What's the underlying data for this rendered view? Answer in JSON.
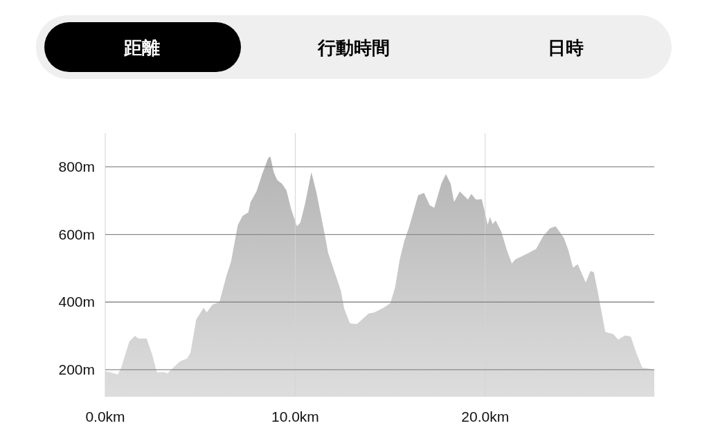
{
  "chart_data": {
    "type": "area",
    "annotations": [
      "距離",
      "行動時間",
      "日時"
    ],
    "x": [
      0,
      0.47,
      0.66,
      0.84,
      1.27,
      1.57,
      1.75,
      2.18,
      2.48,
      2.72,
      3.09,
      3.27,
      3.58,
      3.94,
      4.31,
      4.49,
      4.79,
      5.18,
      5.34,
      5.65,
      6.01,
      6.38,
      6.62,
      6.98,
      7.23,
      7.53,
      7.65,
      7.96,
      8.26,
      8.57,
      8.69,
      8.87,
      9.05,
      9.3,
      9.54,
      9.78,
      10.09,
      10.27,
      10.51,
      10.85,
      11.12,
      11.55,
      11.73,
      12.4,
      12.58,
      12.88,
      13.25,
      13.86,
      14.16,
      14.65,
      15.01,
      15.26,
      15.5,
      15.74,
      15.99,
      16.47,
      16.78,
      17.08,
      17.32,
      17.69,
      17.93,
      18.18,
      18.36,
      18.66,
      18.91,
      19.09,
      19.27,
      19.51,
      19.82,
      19.94,
      20.13,
      20.25,
      20.39,
      20.55,
      20.85,
      21.16,
      21.4,
      21.58,
      22.07,
      22.68,
      23.04,
      23.41,
      23.71,
      24.14,
      24.38,
      24.62,
      24.87,
      25.29,
      25.54,
      25.72,
      25.96,
      26.32,
      26.75,
      27.0,
      27.36,
      27.66,
      27.97,
      28.27,
      28.9
    ],
    "series": [
      {
        "color": "#b4b4b4",
        "values": [
          196,
          189,
          186,
          206,
          284,
          300,
          292,
          292,
          243,
          192,
          193,
          189,
          206,
          225,
          233,
          251,
          349,
          383,
          369,
          393,
          400,
          478,
          519,
          628,
          655,
          665,
          696,
          727,
          778,
          825,
          831,
          784,
          761,
          750,
          730,
          676,
          624,
          635,
          689,
          784,
          723,
          601,
          546,
          434,
          380,
          337,
          335,
          366,
          369,
          383,
          397,
          444,
          526,
          580,
          621,
          716,
          723,
          686,
          679,
          750,
          778,
          750,
          696,
          727,
          713,
          703,
          720,
          703,
          704,
          676,
          628,
          652,
          631,
          641,
          608,
          550,
          514,
          526,
          539,
          557,
          594,
          618,
          624,
          590,
          553,
          502,
          512,
          458,
          492,
          488,
          420,
          312,
          305,
          289,
          301,
          298,
          247,
          206,
          201
        ]
      }
    ],
    "xlim": [
      0,
      28.9
    ],
    "xticks": [
      {
        "value": 0,
        "label": "0.0km"
      },
      {
        "value": 10,
        "label": "10.0km"
      },
      {
        "value": 20,
        "label": "20.0km"
      }
    ],
    "ylim": [
      120,
      900
    ],
    "yticks": [
      {
        "value": 200,
        "label": "200m"
      },
      {
        "value": 400,
        "label": "400m"
      },
      {
        "value": 600,
        "label": "600m"
      },
      {
        "value": 800,
        "label": "800m"
      }
    ],
    "grid": true
  }
}
